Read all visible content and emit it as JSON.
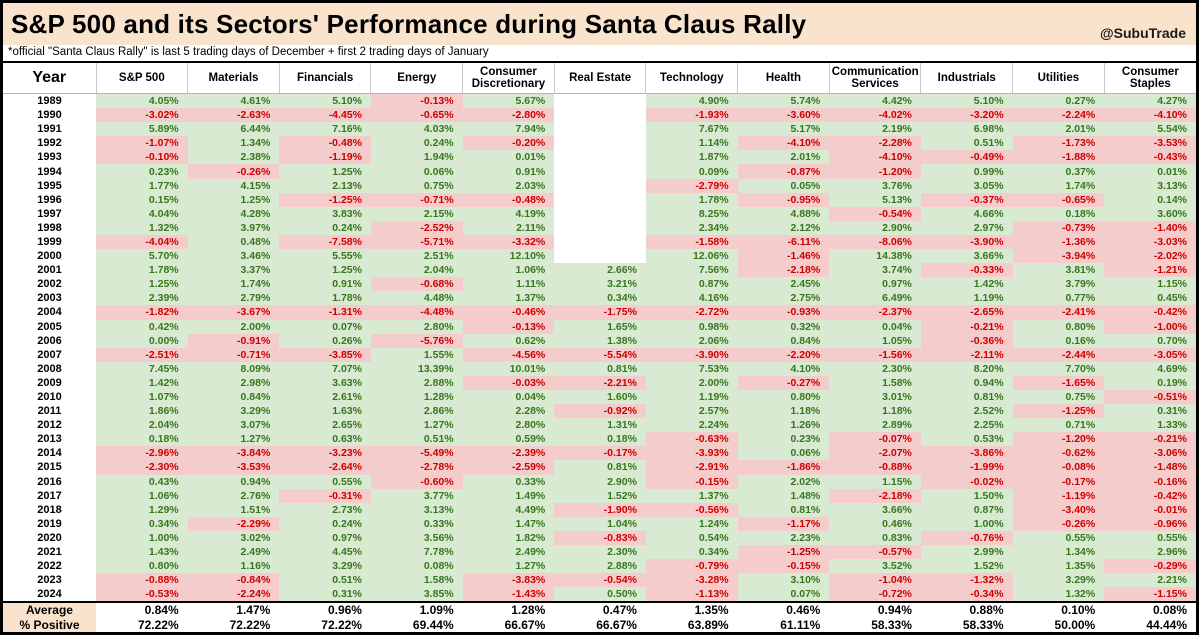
{
  "header": {
    "title": "S&P 500 and its Sectors' Performance during Santa Claus Rally",
    "handle": "@SubuTrade",
    "subtitle": "*official \"Santa Claus Rally\" is last 5 trading days of December + first 2 trading days of January"
  },
  "colors": {
    "band_bg": "#fae3cd",
    "positive_bg": "#d9ead3",
    "positive_text": "#38761d",
    "negative_bg": "#f4cccc",
    "negative_text": "#cc0000"
  },
  "chart_data": {
    "type": "table",
    "columns": [
      "Year",
      "S&P 500",
      "Materials",
      "Financials",
      "Energy",
      "Consumer Discretionary",
      "Real Estate",
      "Technology",
      "Health",
      "Communication Services",
      "Industrials",
      "Utilities",
      "Consumer Staples"
    ],
    "rows": [
      {
        "year": "1989",
        "values": [
          "4.05%",
          "4.61%",
          "5.10%",
          "-0.13%",
          "5.67%",
          null,
          "4.90%",
          "5.74%",
          "4.42%",
          "5.10%",
          "0.27%",
          "4.27%"
        ]
      },
      {
        "year": "1990",
        "values": [
          "-3.02%",
          "-2.63%",
          "-4.45%",
          "-0.65%",
          "-2.80%",
          null,
          "-1.93%",
          "-3.60%",
          "-4.02%",
          "-3.20%",
          "-2.24%",
          "-4.10%"
        ]
      },
      {
        "year": "1991",
        "values": [
          "5.89%",
          "6.44%",
          "7.16%",
          "4.03%",
          "7.94%",
          null,
          "7.67%",
          "5.17%",
          "2.19%",
          "6.98%",
          "2.01%",
          "5.54%"
        ]
      },
      {
        "year": "1992",
        "values": [
          "-1.07%",
          "1.34%",
          "-0.48%",
          "0.24%",
          "-0.20%",
          null,
          "1.14%",
          "-4.10%",
          "-2.28%",
          "0.51%",
          "-1.73%",
          "-3.53%"
        ]
      },
      {
        "year": "1993",
        "values": [
          "-0.10%",
          "2.38%",
          "-1.19%",
          "1.94%",
          "0.01%",
          null,
          "1.87%",
          "2.01%",
          "-4.10%",
          "-0.49%",
          "-1.88%",
          "-0.43%"
        ]
      },
      {
        "year": "1994",
        "values": [
          "0.23%",
          "-0.26%",
          "1.25%",
          "0.06%",
          "0.91%",
          null,
          "0.09%",
          "-0.87%",
          "-1.20%",
          "0.99%",
          "0.37%",
          "0.01%"
        ]
      },
      {
        "year": "1995",
        "values": [
          "1.77%",
          "4.15%",
          "2.13%",
          "0.75%",
          "2.03%",
          null,
          "-2.79%",
          "0.05%",
          "3.76%",
          "3.05%",
          "1.74%",
          "3.13%"
        ]
      },
      {
        "year": "1996",
        "values": [
          "0.15%",
          "1.25%",
          "-1.25%",
          "-0.71%",
          "-0.48%",
          null,
          "1.78%",
          "-0.95%",
          "5.13%",
          "-0.37%",
          "-0.65%",
          "0.14%"
        ]
      },
      {
        "year": "1997",
        "values": [
          "4.04%",
          "4.28%",
          "3.83%",
          "2.15%",
          "4.19%",
          null,
          "8.25%",
          "4.88%",
          "-0.54%",
          "4.66%",
          "0.18%",
          "3.60%"
        ]
      },
      {
        "year": "1998",
        "values": [
          "1.32%",
          "3.97%",
          "0.24%",
          "-2.52%",
          "2.11%",
          null,
          "2.34%",
          "2.12%",
          "2.90%",
          "2.97%",
          "-0.73%",
          "-1.40%"
        ]
      },
      {
        "year": "1999",
        "values": [
          "-4.04%",
          "0.48%",
          "-7.58%",
          "-5.71%",
          "-3.32%",
          null,
          "-1.58%",
          "-6.11%",
          "-8.06%",
          "-3.90%",
          "-1.36%",
          "-3.03%"
        ]
      },
      {
        "year": "2000",
        "values": [
          "5.70%",
          "3.46%",
          "5.55%",
          "2.51%",
          "12.10%",
          null,
          "12.06%",
          "-1.46%",
          "14.38%",
          "3.66%",
          "-3.94%",
          "-2.02%"
        ]
      },
      {
        "year": "2001",
        "values": [
          "1.78%",
          "3.37%",
          "1.25%",
          "2.04%",
          "1.06%",
          "2.66%",
          "7.56%",
          "-2.18%",
          "3.74%",
          "-0.33%",
          "3.81%",
          "-1.21%"
        ]
      },
      {
        "year": "2002",
        "values": [
          "1.25%",
          "1.74%",
          "0.91%",
          "-0.68%",
          "1.11%",
          "3.21%",
          "0.87%",
          "2.45%",
          "0.97%",
          "1.42%",
          "3.79%",
          "1.15%"
        ]
      },
      {
        "year": "2003",
        "values": [
          "2.39%",
          "2.79%",
          "1.78%",
          "4.48%",
          "1.37%",
          "0.34%",
          "4.16%",
          "2.75%",
          "6.49%",
          "1.19%",
          "0.77%",
          "0.45%"
        ]
      },
      {
        "year": "2004",
        "values": [
          "-1.82%",
          "-3.67%",
          "-1.31%",
          "-4.48%",
          "-0.46%",
          "-1.75%",
          "-2.72%",
          "-0.93%",
          "-2.37%",
          "-2.65%",
          "-2.41%",
          "-0.42%"
        ]
      },
      {
        "year": "2005",
        "values": [
          "0.42%",
          "2.00%",
          "0.07%",
          "2.80%",
          "-0.13%",
          "1.65%",
          "0.98%",
          "0.32%",
          "0.04%",
          "-0.21%",
          "0.80%",
          "-1.00%"
        ]
      },
      {
        "year": "2006",
        "values": [
          "0.00%",
          "-0.91%",
          "0.26%",
          "-5.76%",
          "0.62%",
          "1.38%",
          "2.06%",
          "0.84%",
          "1.05%",
          "-0.36%",
          "0.16%",
          "0.70%"
        ]
      },
      {
        "year": "2007",
        "values": [
          "-2.51%",
          "-0.71%",
          "-3.85%",
          "1.55%",
          "-4.56%",
          "-5.54%",
          "-3.90%",
          "-2.20%",
          "-1.56%",
          "-2.11%",
          "-2.44%",
          "-3.05%"
        ]
      },
      {
        "year": "2008",
        "values": [
          "7.45%",
          "8.09%",
          "7.07%",
          "13.39%",
          "10.01%",
          "0.81%",
          "7.53%",
          "4.10%",
          "2.30%",
          "8.20%",
          "7.70%",
          "4.69%"
        ]
      },
      {
        "year": "2009",
        "values": [
          "1.42%",
          "2.98%",
          "3.63%",
          "2.88%",
          "-0.03%",
          "-2.21%",
          "2.00%",
          "-0.27%",
          "1.58%",
          "0.94%",
          "-1.65%",
          "0.19%"
        ]
      },
      {
        "year": "2010",
        "values": [
          "1.07%",
          "0.84%",
          "2.61%",
          "1.28%",
          "0.04%",
          "1.60%",
          "1.19%",
          "0.80%",
          "3.01%",
          "0.81%",
          "0.75%",
          "-0.51%"
        ]
      },
      {
        "year": "2011",
        "values": [
          "1.86%",
          "3.29%",
          "1.63%",
          "2.86%",
          "2.28%",
          "-0.92%",
          "2.57%",
          "1.18%",
          "1.18%",
          "2.52%",
          "-1.25%",
          "0.31%"
        ]
      },
      {
        "year": "2012",
        "values": [
          "2.04%",
          "3.07%",
          "2.65%",
          "1.27%",
          "2.80%",
          "1.31%",
          "2.24%",
          "1.26%",
          "2.89%",
          "2.25%",
          "0.71%",
          "1.33%"
        ]
      },
      {
        "year": "2013",
        "values": [
          "0.18%",
          "1.27%",
          "0.63%",
          "0.51%",
          "0.59%",
          "0.18%",
          "-0.63%",
          "0.23%",
          "-0.07%",
          "0.53%",
          "-1.20%",
          "-0.21%"
        ]
      },
      {
        "year": "2014",
        "values": [
          "-2.96%",
          "-3.84%",
          "-3.23%",
          "-5.49%",
          "-2.39%",
          "-0.17%",
          "-3.93%",
          "0.06%",
          "-2.07%",
          "-3.86%",
          "-0.62%",
          "-3.06%"
        ]
      },
      {
        "year": "2015",
        "values": [
          "-2.30%",
          "-3.53%",
          "-2.64%",
          "-2.78%",
          "-2.59%",
          "0.81%",
          "-2.91%",
          "-1.86%",
          "-0.88%",
          "-1.99%",
          "-0.08%",
          "-1.48%"
        ]
      },
      {
        "year": "2016",
        "values": [
          "0.43%",
          "0.94%",
          "0.55%",
          "-0.60%",
          "0.33%",
          "2.90%",
          "-0.15%",
          "2.02%",
          "1.15%",
          "-0.02%",
          "-0.17%",
          "-0.16%"
        ]
      },
      {
        "year": "2017",
        "values": [
          "1.06%",
          "2.76%",
          "-0.31%",
          "3.77%",
          "1.49%",
          "1.52%",
          "1.37%",
          "1.48%",
          "-2.18%",
          "1.50%",
          "-1.19%",
          "-0.42%"
        ]
      },
      {
        "year": "2018",
        "values": [
          "1.29%",
          "1.51%",
          "2.73%",
          "3.13%",
          "4.49%",
          "-1.90%",
          "-0.56%",
          "0.81%",
          "3.66%",
          "0.87%",
          "-3.40%",
          "-0.01%"
        ]
      },
      {
        "year": "2019",
        "values": [
          "0.34%",
          "-2.29%",
          "0.24%",
          "0.33%",
          "1.47%",
          "1.04%",
          "1.24%",
          "-1.17%",
          "0.46%",
          "1.00%",
          "-0.26%",
          "-0.96%"
        ]
      },
      {
        "year": "2020",
        "values": [
          "1.00%",
          "3.02%",
          "0.97%",
          "3.56%",
          "1.82%",
          "-0.83%",
          "0.54%",
          "2.23%",
          "0.83%",
          "-0.76%",
          "0.55%",
          "0.55%"
        ]
      },
      {
        "year": "2021",
        "values": [
          "1.43%",
          "2.49%",
          "4.45%",
          "7.78%",
          "2.49%",
          "2.30%",
          "0.34%",
          "-1.25%",
          "-0.57%",
          "2.99%",
          "1.34%",
          "2.96%"
        ]
      },
      {
        "year": "2022",
        "values": [
          "0.80%",
          "1.16%",
          "3.29%",
          "0.08%",
          "1.27%",
          "2.88%",
          "-0.79%",
          "-0.15%",
          "3.52%",
          "1.52%",
          "1.35%",
          "-0.29%"
        ]
      },
      {
        "year": "2023",
        "values": [
          "-0.88%",
          "-0.84%",
          "0.51%",
          "1.58%",
          "-3.83%",
          "-0.54%",
          "-3.28%",
          "3.10%",
          "-1.04%",
          "-1.32%",
          "3.29%",
          "2.21%"
        ]
      },
      {
        "year": "2024",
        "values": [
          "-0.53%",
          "-2.24%",
          "0.31%",
          "3.85%",
          "-1.43%",
          "0.50%",
          "-1.13%",
          "0.07%",
          "-0.72%",
          "-0.34%",
          "1.32%",
          "-1.15%"
        ]
      }
    ],
    "summary": {
      "average_label": "Average",
      "average": [
        "0.84%",
        "1.47%",
        "0.96%",
        "1.09%",
        "1.28%",
        "0.47%",
        "1.35%",
        "0.46%",
        "0.94%",
        "0.88%",
        "0.10%",
        "0.08%"
      ],
      "pct_positive_label": "% Positive",
      "pct_positive": [
        "72.22%",
        "72.22%",
        "72.22%",
        "69.44%",
        "66.67%",
        "66.67%",
        "63.89%",
        "61.11%",
        "58.33%",
        "58.33%",
        "50.00%",
        "44.44%"
      ]
    }
  }
}
